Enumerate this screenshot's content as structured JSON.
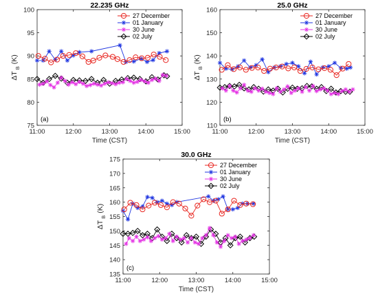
{
  "chart_data": [
    {
      "type": "line",
      "title": "22.235 GHz",
      "panel_label": "(a)",
      "xlabel": "Time (CST)",
      "ylabel": {
        "main": "ΔT",
        "sub": "B",
        "unit": "(K)"
      },
      "xlim": [
        "11:00",
        "15:00"
      ],
      "ylim": [
        75,
        100
      ],
      "xticks": [
        "11:00",
        "12:00",
        "13:00",
        "14:00",
        "15:00"
      ],
      "yticks": [
        75,
        80,
        85,
        90,
        95,
        100
      ],
      "grid": false,
      "legend_position": "top-right",
      "series": [
        {
          "name": "27 December",
          "color": "#e8251f",
          "marker": "circle",
          "x": [
            "11:02",
            "11:13",
            "11:23",
            "11:33",
            "11:43",
            "11:53",
            "12:04",
            "12:15",
            "12:25",
            "12:33",
            "12:43",
            "12:53",
            "13:05",
            "13:13",
            "13:23",
            "13:33",
            "13:43",
            "13:53",
            "14:03",
            "14:13",
            "14:23",
            "14:33"
          ],
          "y": [
            90.0,
            89.4,
            88.6,
            89.2,
            90.0,
            90.2,
            90.6,
            89.9,
            88.7,
            89.0,
            89.6,
            90.1,
            89.8,
            89.3,
            88.7,
            89.1,
            89.7,
            89.5,
            89.6,
            90.3,
            89.8,
            89.1
          ]
        },
        {
          "name": "01 January",
          "color": "#1f35e0",
          "marker": "star",
          "x": [
            "11:00",
            "11:10",
            "11:20",
            "11:30",
            "11:40",
            "11:50",
            "12:00",
            "12:10",
            "12:30",
            "13:17",
            "13:27",
            "13:40",
            "13:52",
            "14:02",
            "14:12",
            "14:22",
            "14:35"
          ],
          "y": [
            89.0,
            89.0,
            91.0,
            89.2,
            91.0,
            89.0,
            90.1,
            90.8,
            91.0,
            92.3,
            88.7,
            88.8,
            89.4,
            88.7,
            89.1,
            90.6,
            91.0
          ]
        },
        {
          "name": "30 June",
          "color": "#e432e4",
          "marker": "star",
          "x": [
            "11:04",
            "11:10",
            "11:16",
            "11:22",
            "11:28",
            "11:34",
            "11:40",
            "11:46",
            "11:52",
            "11:58",
            "12:04",
            "12:10",
            "12:16",
            "12:22",
            "12:28",
            "12:34",
            "12:40",
            "12:46",
            "12:52",
            "12:58",
            "13:04",
            "13:10",
            "13:16",
            "13:22",
            "13:28",
            "13:34",
            "13:40",
            "13:46",
            "13:52",
            "13:58",
            "14:04",
            "14:10",
            "14:16",
            "14:22",
            "14:28",
            "14:34"
          ],
          "y": [
            83.8,
            84.0,
            84.5,
            83.7,
            83.2,
            84.2,
            85.3,
            84.6,
            83.8,
            84.3,
            83.9,
            84.4,
            84.0,
            83.5,
            83.7,
            84.0,
            83.8,
            83.6,
            84.0,
            84.3,
            84.1,
            83.9,
            84.2,
            84.3,
            85.0,
            84.6,
            84.2,
            84.4,
            84.8,
            84.5,
            84.2,
            84.8,
            85.1,
            84.6,
            85.9,
            85.7
          ]
        },
        {
          "name": "02 July",
          "color": "#000000",
          "marker": "diamond",
          "x": [
            "11:00",
            "11:10",
            "11:20",
            "11:30",
            "11:40",
            "11:50",
            "12:00",
            "12:10",
            "12:20",
            "12:30",
            "12:40",
            "12:50",
            "13:00",
            "13:10",
            "13:20",
            "13:30",
            "13:40",
            "13:50",
            "14:00",
            "14:10",
            "14:20",
            "14:30",
            "14:35"
          ],
          "y": [
            85.0,
            84.2,
            85.0,
            85.7,
            85.1,
            84.2,
            84.8,
            84.7,
            84.6,
            85.0,
            84.2,
            84.8,
            84.0,
            84.6,
            84.9,
            85.2,
            85.3,
            85.0,
            84.5,
            85.4,
            84.9,
            85.8,
            85.6
          ]
        }
      ]
    },
    {
      "type": "line",
      "title": "25.0 GHz",
      "panel_label": "(b)",
      "xlabel": "Time (CST)",
      "ylabel": {
        "main": "ΔT",
        "sub": "B",
        "unit": "(K)"
      },
      "xlim": [
        "11:00",
        "15:00"
      ],
      "ylim": [
        110,
        160
      ],
      "xticks": [
        "11:00",
        "12:00",
        "13:00",
        "14:00",
        "15:00"
      ],
      "yticks": [
        110,
        120,
        130,
        140,
        150,
        160
      ],
      "grid": false,
      "legend_position": "top-right",
      "series": [
        {
          "name": "27 December",
          "color": "#e8251f",
          "marker": "circle",
          "x": [
            "11:03",
            "11:13",
            "11:23",
            "11:33",
            "11:43",
            "11:53",
            "12:03",
            "12:13",
            "12:23",
            "12:33",
            "12:43",
            "12:53",
            "13:03",
            "13:13",
            "13:23",
            "13:33",
            "13:43",
            "13:53",
            "14:03",
            "14:13",
            "14:23",
            "14:33"
          ],
          "y": [
            134.0,
            136.0,
            134.3,
            135.0,
            134.0,
            134.8,
            135.0,
            133.5,
            134.5,
            135.0,
            135.4,
            134.6,
            135.0,
            133.5,
            134.4,
            135.0,
            134.2,
            134.7,
            134.0,
            131.7,
            134.5,
            136.5
          ]
        },
        {
          "name": "01 January",
          "color": "#1f35e0",
          "marker": "star",
          "x": [
            "11:00",
            "11:10",
            "11:20",
            "11:30",
            "11:40",
            "11:50",
            "12:00",
            "12:10",
            "12:20",
            "12:30",
            "12:40",
            "12:50",
            "13:00",
            "13:10",
            "13:20",
            "13:30",
            "13:40",
            "13:50",
            "14:00",
            "14:10",
            "14:20",
            "14:30",
            "14:36"
          ],
          "y": [
            137.0,
            134.5,
            134.2,
            135.5,
            138.0,
            135.0,
            136.0,
            138.5,
            133.0,
            135.0,
            135.5,
            136.5,
            137.0,
            135.5,
            132.5,
            137.5,
            132.0,
            135.0,
            135.5,
            137.0,
            134.8,
            134.5,
            135.0
          ]
        },
        {
          "name": "30 June",
          "color": "#e432e4",
          "marker": "star",
          "x": [
            "11:04",
            "11:10",
            "11:16",
            "11:22",
            "11:28",
            "11:34",
            "11:40",
            "11:46",
            "11:52",
            "11:58",
            "12:04",
            "12:10",
            "12:16",
            "12:22",
            "12:28",
            "12:34",
            "12:40",
            "12:46",
            "12:52",
            "12:58",
            "13:04",
            "13:10",
            "13:16",
            "13:22",
            "13:28",
            "13:34",
            "13:40",
            "13:46",
            "13:52",
            "13:58",
            "14:04",
            "14:10",
            "14:16",
            "14:22",
            "14:28",
            "14:34",
            "14:40"
          ],
          "y": [
            126.0,
            125.0,
            127.0,
            125.0,
            124.2,
            126.0,
            127.5,
            125.0,
            124.5,
            126.0,
            125.0,
            125.8,
            124.5,
            124.0,
            123.5,
            126.0,
            124.5,
            125.5,
            126.8,
            124.0,
            125.0,
            126.0,
            124.5,
            126.5,
            125.0,
            127.0,
            124.8,
            125.5,
            126.0,
            125.0,
            123.5,
            124.0,
            123.5,
            124.8,
            125.5,
            124.5,
            125.5
          ]
        },
        {
          "name": "02 July",
          "color": "#000000",
          "marker": "diamond",
          "x": [
            "11:00",
            "11:08",
            "11:16",
            "11:24",
            "11:32",
            "11:40",
            "11:48",
            "11:56",
            "12:04",
            "12:12",
            "12:20",
            "12:28",
            "12:36",
            "12:44",
            "12:52",
            "13:00",
            "13:08",
            "13:16",
            "13:24",
            "13:32",
            "13:40",
            "13:48",
            "13:56",
            "14:04",
            "14:12",
            "14:20",
            "14:28",
            "14:35"
          ],
          "y": [
            126.3,
            126.5,
            127.0,
            126.8,
            127.5,
            126.0,
            125.5,
            126.5,
            125.8,
            124.6,
            125.5,
            125.0,
            125.8,
            124.2,
            125.8,
            126.3,
            125.8,
            126.0,
            127.0,
            126.8,
            125.8,
            126.5,
            124.8,
            125.8,
            124.2,
            124.8,
            124.5,
            124.5
          ]
        }
      ]
    },
    {
      "type": "line",
      "title": "30.0 GHz",
      "panel_label": "(c)",
      "xlabel": "Time (CST)",
      "ylabel": {
        "main": "ΔT",
        "sub": "B",
        "unit": "(K)"
      },
      "xlim": [
        "11:00",
        "15:00"
      ],
      "ylim": [
        135,
        175
      ],
      "xticks": [
        "11:00",
        "12:00",
        "13:00",
        "14:00",
        "15:00"
      ],
      "yticks": [
        135,
        140,
        145,
        150,
        155,
        160,
        165,
        170,
        175
      ],
      "grid": false,
      "legend_position": "top-right",
      "series": [
        {
          "name": "27 December",
          "color": "#e8251f",
          "marker": "circle",
          "x": [
            "11:02",
            "11:12",
            "11:22",
            "11:32",
            "11:42",
            "11:52",
            "12:02",
            "12:12",
            "12:22",
            "12:32",
            "12:42",
            "12:52",
            "13:02",
            "13:12",
            "13:22",
            "13:32",
            "13:42",
            "13:52",
            "14:02",
            "14:12",
            "14:22",
            "14:33"
          ],
          "y": [
            157.5,
            159.8,
            159.0,
            157.5,
            158.8,
            159.8,
            159.0,
            158.2,
            160.0,
            159.5,
            157.8,
            155.3,
            158.8,
            161.0,
            160.0,
            160.5,
            156.0,
            157.5,
            160.5,
            159.0,
            159.5,
            159.3
          ]
        },
        {
          "name": "01 January",
          "color": "#1f35e0",
          "marker": "star",
          "x": [
            "11:00",
            "11:08",
            "11:16",
            "11:24",
            "11:32",
            "11:40",
            "11:48",
            "11:56",
            "12:04",
            "12:12",
            "12:20",
            "12:28",
            "13:20",
            "13:28",
            "13:36",
            "13:44",
            "13:52",
            "14:00",
            "14:08",
            "14:16",
            "14:24",
            "14:34"
          ],
          "y": [
            157.0,
            154.0,
            159.5,
            158.0,
            158.5,
            161.8,
            161.5,
            160.0,
            160.5,
            159.5,
            159.0,
            160.0,
            162.0,
            160.5,
            161.0,
            162.0,
            157.5,
            157.5,
            158.0,
            159.5,
            159.5,
            159.5
          ]
        },
        {
          "name": "30 June",
          "color": "#e432e4",
          "marker": "star",
          "x": [
            "11:05",
            "11:10",
            "11:16",
            "11:22",
            "11:28",
            "11:34",
            "11:40",
            "11:46",
            "11:52",
            "11:58",
            "12:04",
            "12:10",
            "12:16",
            "12:22",
            "12:28",
            "12:34",
            "12:40",
            "12:46",
            "12:52",
            "12:58",
            "13:04",
            "13:10",
            "13:16",
            "13:22",
            "13:28",
            "13:34",
            "13:40",
            "13:46",
            "13:52",
            "13:58",
            "14:04",
            "14:10",
            "14:16",
            "14:22",
            "14:28",
            "14:34"
          ],
          "y": [
            145.5,
            147.5,
            146.5,
            148.0,
            146.5,
            147.0,
            147.8,
            146.5,
            147.5,
            148.2,
            147.0,
            147.5,
            149.0,
            146.5,
            148.0,
            147.0,
            147.5,
            146.0,
            147.5,
            146.0,
            145.5,
            147.5,
            148.5,
            151.0,
            148.5,
            146.0,
            144.5,
            146.5,
            148.5,
            147.5,
            148.0,
            145.5,
            146.5,
            147.0,
            147.5,
            148.5
          ]
        },
        {
          "name": "02 July",
          "color": "#000000",
          "marker": "diamond",
          "x": [
            "11:00",
            "11:08",
            "11:16",
            "11:24",
            "11:32",
            "11:40",
            "11:48",
            "11:56",
            "12:04",
            "12:12",
            "12:20",
            "12:28",
            "12:36",
            "12:44",
            "12:52",
            "13:00",
            "13:08",
            "13:16",
            "13:24",
            "13:32",
            "13:40",
            "13:48",
            "13:56",
            "14:04",
            "14:12",
            "14:20",
            "14:28",
            "14:35"
          ],
          "y": [
            149.0,
            149.0,
            149.3,
            150.0,
            148.5,
            149.0,
            147.5,
            150.5,
            148.0,
            146.5,
            149.0,
            147.5,
            146.0,
            148.5,
            147.5,
            148.0,
            145.5,
            148.0,
            150.5,
            149.0,
            146.0,
            147.5,
            145.0,
            147.5,
            148.0,
            146.0,
            147.5,
            148.0
          ]
        }
      ]
    }
  ]
}
